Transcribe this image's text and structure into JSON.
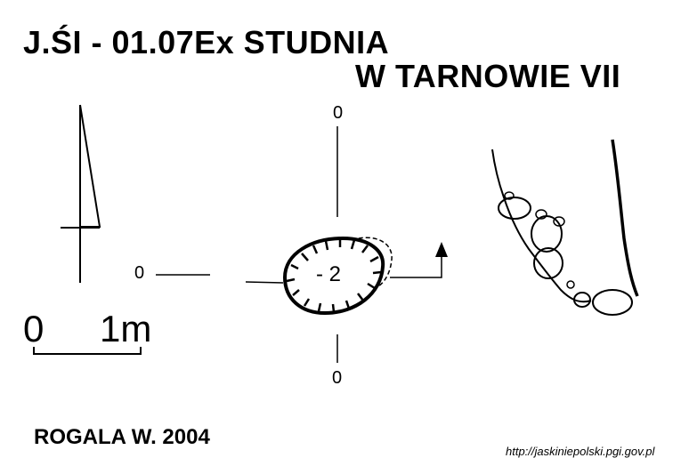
{
  "title": {
    "line1": "J.ŚI - 01.07Ex  STUDNIA",
    "line2": "W TARNOWIE VII"
  },
  "plan": {
    "axis_label_top": "0",
    "axis_label_left": "0",
    "axis_label_bottom": "0",
    "depth_label": "- 2"
  },
  "scale_bar": {
    "start_label": "0",
    "end_label": "1m"
  },
  "author": "ROGALA W. 2004",
  "source": "http://jaskiniepolski.pgi.gov.pl"
}
